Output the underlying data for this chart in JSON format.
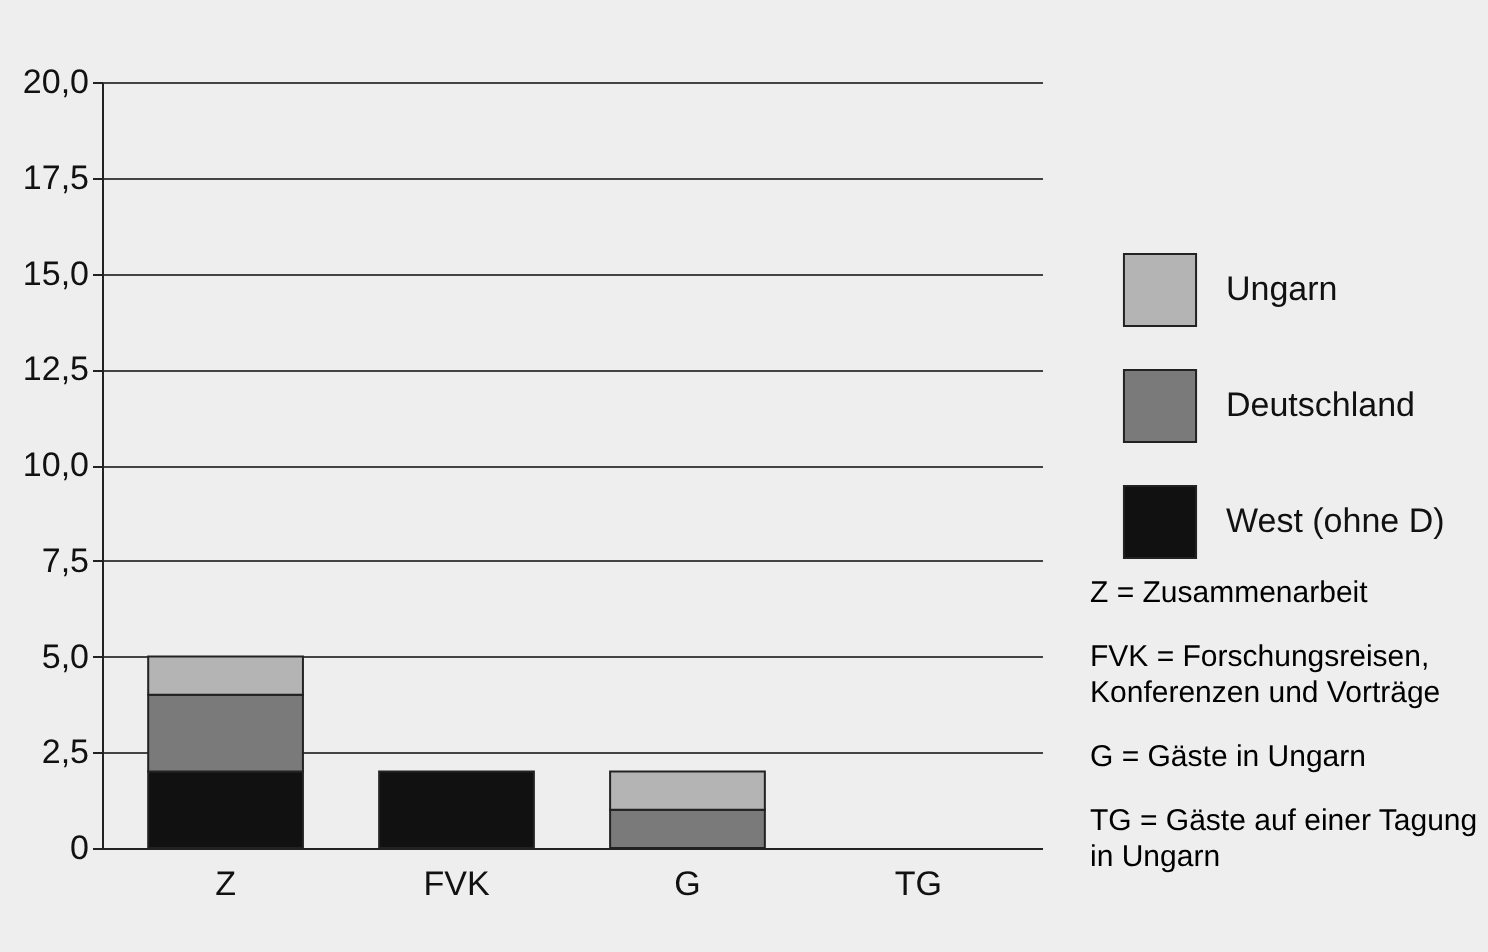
{
  "chart_data": {
    "type": "bar",
    "stacked": true,
    "categories": [
      "Z",
      "FVK",
      "G",
      "TG"
    ],
    "series": [
      {
        "name": "West (ohne D)",
        "color": "#111111",
        "values": [
          2,
          2,
          0,
          0
        ]
      },
      {
        "name": "Deutschland",
        "color": "#7a7a7a",
        "values": [
          2,
          0,
          1,
          0
        ]
      },
      {
        "name": "Ungarn",
        "color": "#b4b4b4",
        "values": [
          1,
          0,
          1,
          0
        ]
      }
    ],
    "ylim": [
      0,
      20
    ],
    "yticks": [
      {
        "value": 0,
        "label": "0"
      },
      {
        "value": 2.5,
        "label": "2,5"
      },
      {
        "value": 5,
        "label": "5,0"
      },
      {
        "value": 7.5,
        "label": "7,5"
      },
      {
        "value": 10,
        "label": "10,0"
      },
      {
        "value": 12.5,
        "label": "12,5"
      },
      {
        "value": 15,
        "label": "15,0"
      },
      {
        "value": 17.5,
        "label": "17,5"
      },
      {
        "value": 20,
        "label": "20,0"
      }
    ],
    "grid": "y",
    "legend": "right",
    "annotations": [
      "Z = Zusammenarbeit",
      "FVK = Forschungsreisen, Konferenzen und Vorträge",
      "G = Gäste in Ungarn",
      "TG = Gäste auf einer Tagung in Ungarn"
    ]
  }
}
